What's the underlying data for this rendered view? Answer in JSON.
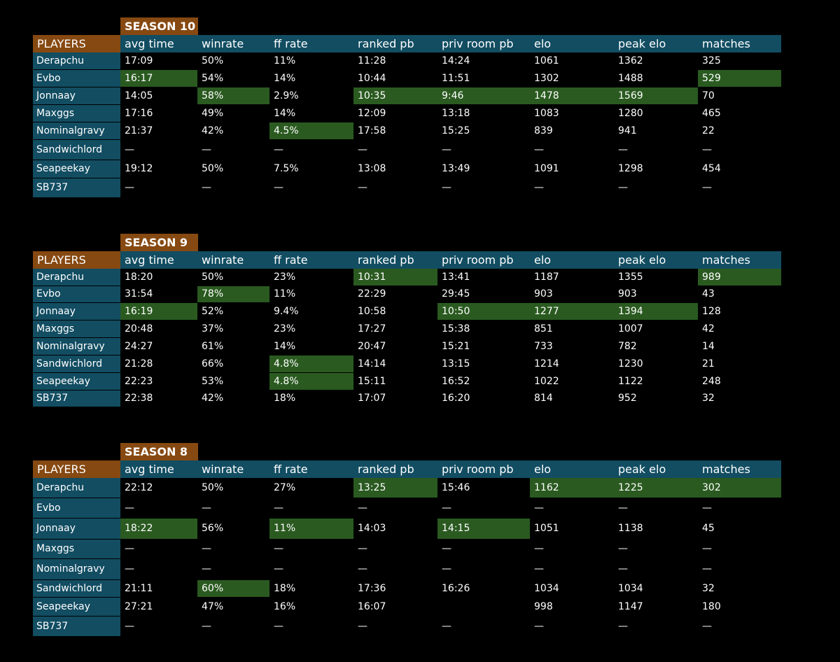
{
  "columns": [
    "PLAYERS",
    "avg time",
    "winrate",
    "ff rate",
    "ranked pb",
    "priv room pb",
    "elo",
    "peak elo",
    "matches"
  ],
  "seasons": [
    {
      "label": "SEASON 10",
      "rows": [
        {
          "player": "Derapchu",
          "values": [
            "17:09",
            "50%",
            "11%",
            "11:28",
            "14:24",
            "1061",
            "1362",
            "325"
          ],
          "hl": []
        },
        {
          "player": "Evbo",
          "values": [
            "16:17",
            "54%",
            "14%",
            "10:44",
            "11:51",
            "1302",
            "1488",
            "529"
          ],
          "hl": [
            0,
            7
          ]
        },
        {
          "player": "Jonnaay",
          "values": [
            "14:05",
            "58%",
            "2.9%",
            "10:35",
            "9:46",
            "1478",
            "1569",
            "70"
          ],
          "hl": [
            1,
            3,
            4,
            5,
            6
          ]
        },
        {
          "player": "Maxggs",
          "values": [
            "17:16",
            "49%",
            "14%",
            "12:09",
            "13:18",
            "1083",
            "1280",
            "465"
          ],
          "hl": []
        },
        {
          "player": "Nominalgravy",
          "values": [
            "21:37",
            "42%",
            "4.5%",
            "17:58",
            "15:25",
            "839",
            "941",
            "22"
          ],
          "hl": [
            2
          ]
        },
        {
          "player": "Sandwichlord",
          "values": [
            "—",
            "—",
            "—",
            "—",
            "—",
            "—",
            "—",
            "—"
          ],
          "hl": []
        },
        {
          "player": "Seapeekay",
          "values": [
            "19:12",
            "50%",
            "7.5%",
            "13:08",
            "13:49",
            "1091",
            "1298",
            "454"
          ],
          "hl": []
        },
        {
          "player": "SB737",
          "values": [
            "—",
            "—",
            "—",
            "—",
            "—",
            "—",
            "—",
            "—"
          ],
          "hl": []
        }
      ]
    },
    {
      "label": "SEASON 9",
      "rows": [
        {
          "player": "Derapchu",
          "values": [
            "18:20",
            "50%",
            "23%",
            "10:31",
            "13:41",
            "1187",
            "1355",
            "989"
          ],
          "hl": [
            3,
            7
          ]
        },
        {
          "player": "Evbo",
          "values": [
            "31:54",
            "78%",
            "11%",
            "22:29",
            "29:45",
            "903",
            "903",
            "43"
          ],
          "hl": [
            1
          ]
        },
        {
          "player": "Jonnaay",
          "values": [
            "16:19",
            "52%",
            "9.4%",
            "10:58",
            "10:50",
            "1277",
            "1394",
            "128"
          ],
          "hl": [
            0,
            4,
            5,
            6
          ]
        },
        {
          "player": "Maxggs",
          "values": [
            "20:48",
            "37%",
            "23%",
            "17:27",
            "15:38",
            "851",
            "1007",
            "42"
          ],
          "hl": []
        },
        {
          "player": "Nominalgravy",
          "values": [
            "24:27",
            "61%",
            "14%",
            "20:47",
            "15:21",
            "733",
            "782",
            "14"
          ],
          "hl": []
        },
        {
          "player": "Sandwichlord",
          "values": [
            "21:28",
            "66%",
            "4.8%",
            "14:14",
            "13:15",
            "1214",
            "1230",
            "21"
          ],
          "hl": [
            2
          ]
        },
        {
          "player": "Seapeekay",
          "values": [
            "22:23",
            "53%",
            "4.8%",
            "15:11",
            "16:52",
            "1022",
            "1122",
            "248"
          ],
          "hl": [
            2
          ]
        },
        {
          "player": "SB737",
          "values": [
            "22:38",
            "42%",
            "18%",
            "17:07",
            "16:20",
            "814",
            "952",
            "32"
          ],
          "hl": []
        }
      ]
    },
    {
      "label": "SEASON 8",
      "rows": [
        {
          "player": "Derapchu",
          "values": [
            "22:12",
            "50%",
            "27%",
            "13:25",
            "15:46",
            "1162",
            "1225",
            "302"
          ],
          "hl": [
            3,
            5,
            6,
            7
          ]
        },
        {
          "player": "Evbo",
          "values": [
            "—",
            "—",
            "—",
            "—",
            "—",
            "—",
            "—",
            "—"
          ],
          "hl": []
        },
        {
          "player": "Jonnaay",
          "values": [
            "18:22",
            "56%",
            "11%",
            "14:03",
            "14:15",
            "1051",
            "1138",
            "45"
          ],
          "hl": [
            0,
            2,
            4
          ]
        },
        {
          "player": "Maxggs",
          "values": [
            "—",
            "—",
            "—",
            "—",
            "—",
            "—",
            "—",
            "—"
          ],
          "hl": []
        },
        {
          "player": "Nominalgravy",
          "values": [
            "—",
            "—",
            "—",
            "—",
            "—",
            "—",
            "—",
            "—"
          ],
          "hl": []
        },
        {
          "player": "Sandwichlord",
          "values": [
            "21:11",
            "60%",
            "18%",
            "17:36",
            "16:26",
            "1034",
            "1034",
            "32"
          ],
          "hl": [
            1
          ]
        },
        {
          "player": "Seapeekay",
          "values": [
            "27:21",
            "47%",
            "16%",
            "16:07",
            "",
            "998",
            "1147",
            "180"
          ],
          "hl": []
        },
        {
          "player": "SB737",
          "values": [
            "—",
            "—",
            "—",
            "—",
            "—",
            "—",
            "—",
            "—"
          ],
          "hl": []
        }
      ]
    }
  ]
}
